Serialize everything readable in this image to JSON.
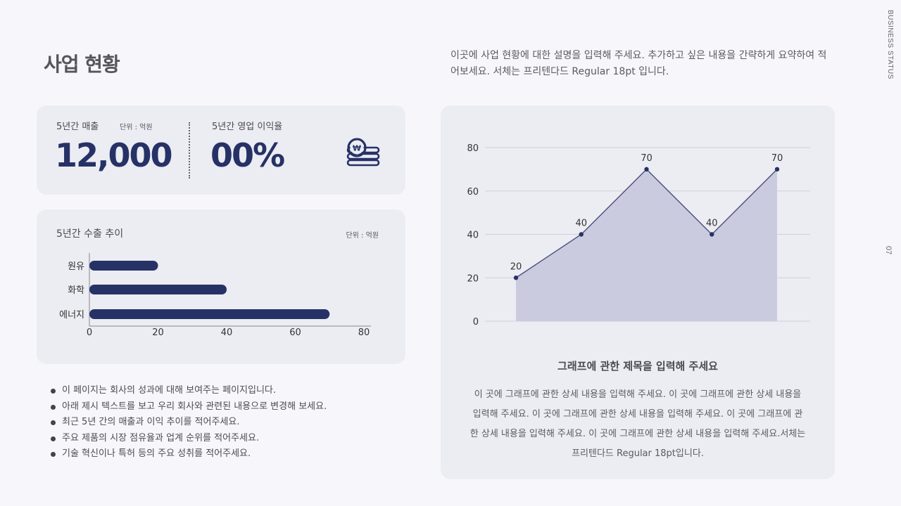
{
  "page": {
    "title": "사업 현황",
    "intro": "이곳에 사업 현황에 대한 설명을 입력해 주세요. 추가하고 싶은 내용을 간략하게 요약하여 적어보세요. 서체는 프리텐다드 Regular 18pt 입니다.",
    "vertical_label": "BUSINESS STATUS",
    "page_number": "07"
  },
  "kpi": {
    "sales_label": "5년간 매출",
    "sales_unit": "단위 : 억원",
    "sales_value": "12,000",
    "margin_label": "5년간 영업 이익율",
    "margin_value": "00%",
    "icon": "won-coin-stack-icon"
  },
  "export": {
    "title": "5년간 수출 추이",
    "unit": "단위 : 억원"
  },
  "bullets": [
    "이 페이지는 회사의 성과에 대해 보여주는 페이지입니다.",
    "아래 제시 텍스트를 보고 우리 회사와 관련된 내용으로 변경해 보세요.",
    "최근 5년 간의 매출과 이익 추이를 적어주세요.",
    "주요 제품의 시장 점유율과 업계 순위를 적어주세요.",
    "기술 혁신이나 특허 등의 주요 성취를 적어주세요."
  ],
  "graph": {
    "title": "그래프에 관한 제목을 입력해 주세요",
    "description": "이 곳에 그래프에 관한 상세 내용을 입력해 주세요. 이 곳에 그래프에 관한 상세 내용을 입력해 주세요. 이 곳에 그래프에 관한 상세 내용을 입력해 주세요. 이 곳에 그래프에 관한 상세 내용을 입력해 주세요. 이 곳에 그래프에 관한 상세 내용을 입력해 주세요.서체는 프리텐다드 Regular 18pt입니다."
  },
  "colors": {
    "accent": "#263266",
    "area_fill": "#c8c9dc",
    "line": "#4a4f7a",
    "card_bg": "#ececf3"
  },
  "chart_data": [
    {
      "type": "bar",
      "orientation": "horizontal",
      "categories": [
        "원유",
        "화학",
        "에너지"
      ],
      "values": [
        20,
        40,
        70
      ],
      "xlim": [
        0,
        80
      ],
      "xticks": [
        0,
        20,
        40,
        60,
        80
      ],
      "grid": false
    },
    {
      "type": "area",
      "x": [
        1,
        2,
        3,
        4,
        5
      ],
      "values": [
        20,
        40,
        70,
        40,
        70
      ],
      "data_labels": [
        "20",
        "40",
        "70",
        "40",
        "70"
      ],
      "ylim": [
        0,
        80
      ],
      "yticks": [
        0,
        20,
        40,
        60,
        80
      ],
      "grid": true
    }
  ]
}
